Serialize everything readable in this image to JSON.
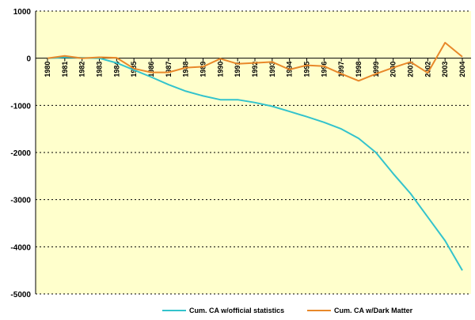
{
  "chart_data": {
    "type": "line",
    "title": "",
    "xlabel": "",
    "ylabel": "",
    "ylim": [
      -5000,
      1000
    ],
    "yticks": [
      1000,
      0,
      -1000,
      -2000,
      -3000,
      -4000,
      -5000
    ],
    "grid": true,
    "legend_position": "bottom",
    "x": [
      "1980",
      "1981",
      "1982",
      "1983",
      "1984",
      "1985",
      "1986",
      "1987",
      "1988",
      "1989",
      "1990",
      "1991",
      "1992",
      "1993",
      "1994",
      "1995",
      "1996",
      "1997",
      "1998",
      "1999",
      "2000",
      "2001",
      "2002",
      "2003",
      "2004"
    ],
    "series": [
      {
        "name": "Cum. CA w/official statistics",
        "color": "#33c3cc",
        "values": [
          0,
          20,
          10,
          0,
          -100,
          -250,
          -400,
          -560,
          -700,
          -800,
          -880,
          -880,
          -940,
          -1020,
          -1130,
          -1240,
          -1360,
          -1500,
          -1700,
          -2000,
          -2450,
          -2870,
          -3370,
          -3870,
          -4500
        ]
      },
      {
        "name": "Cum. CA w/Dark Matter",
        "color": "#e8882a",
        "values": [
          0,
          50,
          0,
          20,
          10,
          -220,
          -300,
          -300,
          -200,
          -180,
          -10,
          -120,
          -100,
          -80,
          -240,
          -150,
          -170,
          -330,
          -480,
          -330,
          -200,
          -80,
          -310,
          330,
          30
        ]
      }
    ]
  }
}
